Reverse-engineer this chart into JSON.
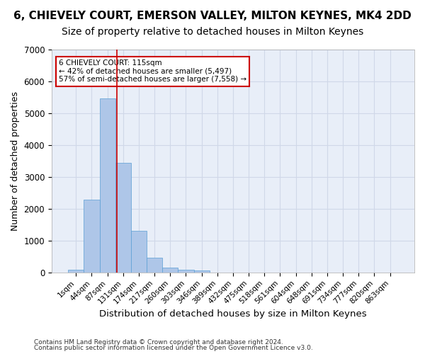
{
  "title": "6, CHIEVELY COURT, EMERSON VALLEY, MILTON KEYNES, MK4 2DD",
  "subtitle": "Size of property relative to detached houses in Milton Keynes",
  "xlabel": "Distribution of detached houses by size in Milton Keynes",
  "ylabel": "Number of detached properties",
  "footnote1": "Contains HM Land Registry data © Crown copyright and database right 2024.",
  "footnote2": "Contains public sector information licensed under the Open Government Licence v3.0.",
  "bin_labels": [
    "1sqm",
    "44sqm",
    "87sqm",
    "131sqm",
    "174sqm",
    "217sqm",
    "260sqm",
    "303sqm",
    "346sqm",
    "389sqm",
    "432sqm",
    "475sqm",
    "518sqm",
    "561sqm",
    "604sqm",
    "648sqm",
    "691sqm",
    "734sqm",
    "777sqm",
    "820sqm",
    "863sqm"
  ],
  "bar_values": [
    80,
    2280,
    5470,
    3440,
    1310,
    470,
    155,
    90,
    55,
    0,
    0,
    0,
    0,
    0,
    0,
    0,
    0,
    0,
    0,
    0,
    0
  ],
  "bar_color": "#aec6e8",
  "bar_edge_color": "#5a9fd4",
  "vline_bin_index": 2.6,
  "annotation_title": "6 CHIEVELY COURT: 115sqm",
  "annotation_line1": "← 42% of detached houses are smaller (5,497)",
  "annotation_line2": "57% of semi-detached houses are larger (7,558) →",
  "annotation_box_color": "#ffffff",
  "annotation_box_edge": "#cc0000",
  "vline_color": "#cc0000",
  "ylim": [
    0,
    7000
  ],
  "yticks": [
    0,
    1000,
    2000,
    3000,
    4000,
    5000,
    6000,
    7000
  ],
  "grid_color": "#d0d8e8",
  "bg_color": "#e8eef8",
  "title_fontsize": 11,
  "subtitle_fontsize": 10,
  "axis_label_fontsize": 9,
  "tick_fontsize": 7.5
}
